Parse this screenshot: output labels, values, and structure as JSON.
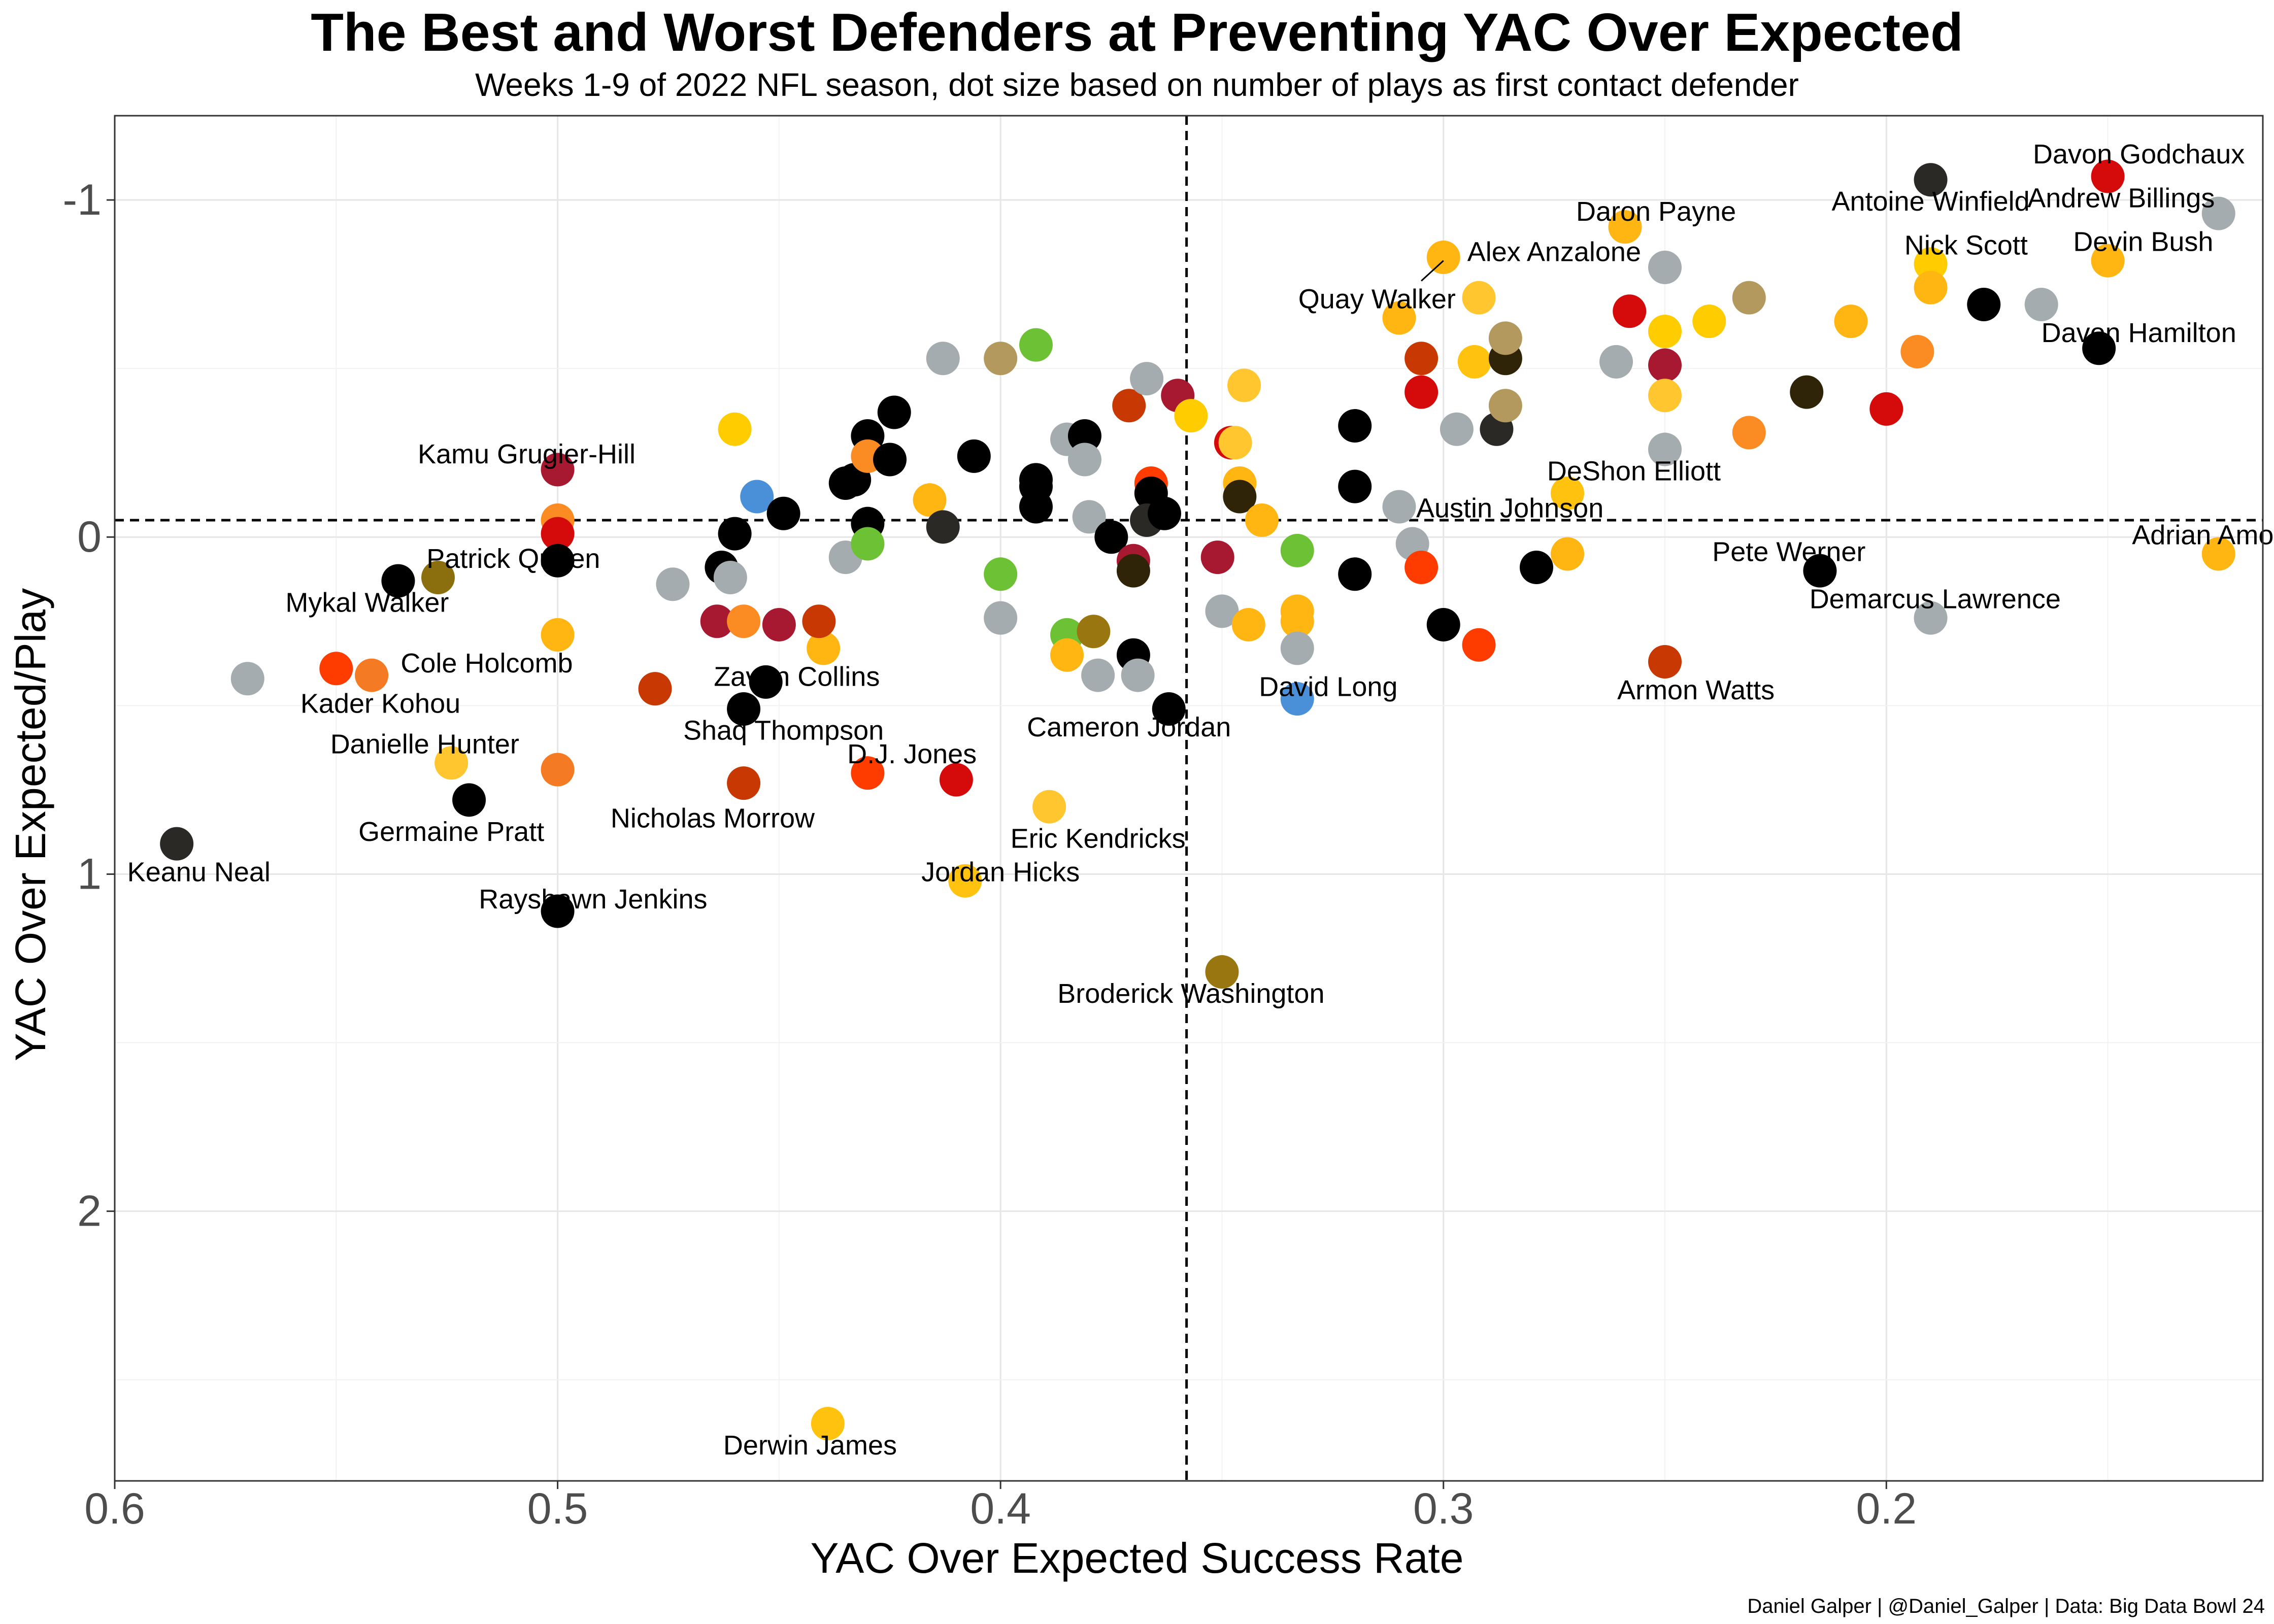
{
  "title": "The Best and Worst Defenders at Preventing YAC Over Expected",
  "subtitle": "Weeks 1-9 of 2022 NFL season, dot size based on number of plays as first contact defender",
  "caption": "Daniel Galper | @Daniel_Galper | Data: Big Data Bowl 24",
  "chart_data": {
    "type": "scatter",
    "xlabel": "YAC Over Expected Success Rate",
    "ylabel": "YAC Over Expected/Play",
    "x_reversed": true,
    "y_reversed": true,
    "xlim": [
      0.6,
      0.115
    ],
    "ylim": [
      -1.25,
      2.8
    ],
    "x_ticks": [
      0.6,
      0.5,
      0.4,
      0.3,
      0.2
    ],
    "x_tick_labels": [
      "0.6",
      "0.5",
      "0.4",
      "0.3",
      "0.2"
    ],
    "y_ticks": [
      -1,
      0,
      1,
      2
    ],
    "y_tick_labels": [
      "-1",
      "0",
      "1",
      "2"
    ],
    "reference_lines": {
      "x": 0.358,
      "y": -0.05
    },
    "grid": true,
    "points": [
      {
        "x": 0.586,
        "y": 0.91,
        "color": "#2b2925"
      },
      {
        "x": 0.57,
        "y": 0.42,
        "color": "#a5acaf"
      },
      {
        "x": 0.55,
        "y": 0.39,
        "color": "#ff3c00"
      },
      {
        "x": 0.542,
        "y": 0.41,
        "color": "#f47a24"
      },
      {
        "x": 0.536,
        "y": 0.13,
        "color": "#000000"
      },
      {
        "x": 0.527,
        "y": 0.12,
        "color": "#8b6f0e"
      },
      {
        "x": 0.524,
        "y": 0.67,
        "color": "#ffc62f"
      },
      {
        "x": 0.52,
        "y": 0.78,
        "color": "#000000"
      },
      {
        "x": 0.5,
        "y": 1.11,
        "color": "#000000"
      },
      {
        "x": 0.5,
        "y": -0.2,
        "color": "#a71930"
      },
      {
        "x": 0.5,
        "y": -0.05,
        "color": "#fb8c24"
      },
      {
        "x": 0.5,
        "y": -0.01,
        "color": "#d50a0a"
      },
      {
        "x": 0.5,
        "y": 0.07,
        "color": "#000000"
      },
      {
        "x": 0.5,
        "y": 0.29,
        "color": "#ffb612"
      },
      {
        "x": 0.5,
        "y": 0.69,
        "color": "#f47a24"
      },
      {
        "x": 0.478,
        "y": 0.45,
        "color": "#c83803"
      },
      {
        "x": 0.474,
        "y": 0.14,
        "color": "#a5acaf"
      },
      {
        "x": 0.463,
        "y": 0.09,
        "color": "#000000"
      },
      {
        "x": 0.464,
        "y": 0.25,
        "color": "#a71930"
      },
      {
        "x": 0.461,
        "y": 0.12,
        "color": "#a5acaf"
      },
      {
        "x": 0.46,
        "y": -0.32,
        "color": "#ffcc00"
      },
      {
        "x": 0.46,
        "y": -0.01,
        "color": "#000000"
      },
      {
        "x": 0.458,
        "y": 0.25,
        "color": "#fb8c24"
      },
      {
        "x": 0.458,
        "y": 0.51,
        "color": "#000000"
      },
      {
        "x": 0.458,
        "y": 0.73,
        "color": "#c83803"
      },
      {
        "x": 0.453,
        "y": 0.43,
        "color": "#000000"
      },
      {
        "x": 0.455,
        "y": -0.12,
        "color": "#4a90d9"
      },
      {
        "x": 0.449,
        "y": -0.07,
        "color": "#000000"
      },
      {
        "x": 0.45,
        "y": 0.26,
        "color": "#a71930"
      },
      {
        "x": 0.44,
        "y": 0.33,
        "color": "#ffb612"
      },
      {
        "x": 0.441,
        "y": 0.25,
        "color": "#c83803"
      },
      {
        "x": 0.439,
        "y": 2.63,
        "color": "#ffc20e"
      },
      {
        "x": 0.435,
        "y": 0.06,
        "color": "#a5acaf"
      },
      {
        "x": 0.435,
        "y": -0.16,
        "color": "#000000"
      },
      {
        "x": 0.433,
        "y": -0.17,
        "color": "#000000"
      },
      {
        "x": 0.43,
        "y": -0.3,
        "color": "#000000"
      },
      {
        "x": 0.43,
        "y": -0.24,
        "color": "#fb8c24"
      },
      {
        "x": 0.43,
        "y": -0.04,
        "color": "#000000"
      },
      {
        "x": 0.43,
        "y": 0.02,
        "color": "#6cc234"
      },
      {
        "x": 0.43,
        "y": 0.7,
        "color": "#ff3c00"
      },
      {
        "x": 0.425,
        "y": -0.23,
        "color": "#000000"
      },
      {
        "x": 0.424,
        "y": -0.37,
        "color": "#000000"
      },
      {
        "x": 0.416,
        "y": -0.11,
        "color": "#ffb612"
      },
      {
        "x": 0.413,
        "y": -0.53,
        "color": "#a5acaf"
      },
      {
        "x": 0.413,
        "y": -0.03,
        "color": "#2b2925"
      },
      {
        "x": 0.41,
        "y": 0.72,
        "color": "#d50a0a"
      },
      {
        "x": 0.408,
        "y": 1.02,
        "color": "#ffc20e"
      },
      {
        "x": 0.4,
        "y": -0.53,
        "color": "#b3995d"
      },
      {
        "x": 0.4,
        "y": 0.11,
        "color": "#6cc234"
      },
      {
        "x": 0.4,
        "y": 0.24,
        "color": "#a5acaf"
      },
      {
        "x": 0.406,
        "y": -0.24,
        "color": "#000000"
      },
      {
        "x": 0.392,
        "y": -0.57,
        "color": "#6cc234"
      },
      {
        "x": 0.392,
        "y": -0.17,
        "color": "#000000"
      },
      {
        "x": 0.392,
        "y": -0.15,
        "color": "#000000"
      },
      {
        "x": 0.392,
        "y": -0.09,
        "color": "#000000"
      },
      {
        "x": 0.389,
        "y": 0.8,
        "color": "#ffc62f"
      },
      {
        "x": 0.385,
        "y": -0.29,
        "color": "#a5acaf"
      },
      {
        "x": 0.385,
        "y": 0.29,
        "color": "#6cc234"
      },
      {
        "x": 0.385,
        "y": 0.35,
        "color": "#ffb612"
      },
      {
        "x": 0.381,
        "y": -0.3,
        "color": "#000000"
      },
      {
        "x": 0.381,
        "y": -0.23,
        "color": "#a5acaf"
      },
      {
        "x": 0.38,
        "y": -0.06,
        "color": "#a5acaf"
      },
      {
        "x": 0.379,
        "y": 0.28,
        "color": "#9a7611"
      },
      {
        "x": 0.378,
        "y": 0.41,
        "color": "#a5acaf"
      },
      {
        "x": 0.375,
        "y": 0.0,
        "color": "#000000"
      },
      {
        "x": 0.371,
        "y": -0.39,
        "color": "#c83803"
      },
      {
        "x": 0.37,
        "y": 0.07,
        "color": "#a71930"
      },
      {
        "x": 0.37,
        "y": 0.1,
        "color": "#2f2308"
      },
      {
        "x": 0.37,
        "y": 0.35,
        "color": "#000000"
      },
      {
        "x": 0.369,
        "y": 0.41,
        "color": "#a5acaf"
      },
      {
        "x": 0.367,
        "y": -0.47,
        "color": "#a5acaf"
      },
      {
        "x": 0.366,
        "y": -0.16,
        "color": "#ff3c00"
      },
      {
        "x": 0.366,
        "y": -0.13,
        "color": "#000000"
      },
      {
        "x": 0.367,
        "y": -0.05,
        "color": "#2b2925"
      },
      {
        "x": 0.363,
        "y": -0.07,
        "color": "#000000"
      },
      {
        "x": 0.362,
        "y": 0.51,
        "color": "#000000"
      },
      {
        "x": 0.36,
        "y": -0.42,
        "color": "#a71930"
      },
      {
        "x": 0.357,
        "y": -0.36,
        "color": "#ffcc00"
      },
      {
        "x": 0.351,
        "y": 0.06,
        "color": "#a71930"
      },
      {
        "x": 0.35,
        "y": 0.22,
        "color": "#a5acaf"
      },
      {
        "x": 0.35,
        "y": 1.29,
        "color": "#9a7611"
      },
      {
        "x": 0.348,
        "y": -0.28,
        "color": "#d50a0a"
      },
      {
        "x": 0.347,
        "y": -0.28,
        "color": "#ffc62f"
      },
      {
        "x": 0.346,
        "y": -0.16,
        "color": "#ffb612"
      },
      {
        "x": 0.346,
        "y": -0.12,
        "color": "#2f2308"
      },
      {
        "x": 0.345,
        "y": -0.45,
        "color": "#ffc62f"
      },
      {
        "x": 0.344,
        "y": 0.26,
        "color": "#ffb612"
      },
      {
        "x": 0.341,
        "y": -0.05,
        "color": "#ffb612"
      },
      {
        "x": 0.333,
        "y": 0.04,
        "color": "#6cc234"
      },
      {
        "x": 0.333,
        "y": 0.22,
        "color": "#ffb612"
      },
      {
        "x": 0.333,
        "y": 0.25,
        "color": "#ffb612"
      },
      {
        "x": 0.333,
        "y": 0.33,
        "color": "#a5acaf"
      },
      {
        "x": 0.333,
        "y": 0.48,
        "color": "#4a90d9"
      },
      {
        "x": 0.32,
        "y": -0.33,
        "color": "#000000"
      },
      {
        "x": 0.32,
        "y": -0.15,
        "color": "#000000"
      },
      {
        "x": 0.32,
        "y": 0.11,
        "color": "#000000"
      },
      {
        "x": 0.31,
        "y": -0.65,
        "color": "#ffb612"
      },
      {
        "x": 0.31,
        "y": -0.09,
        "color": "#a5acaf"
      },
      {
        "x": 0.307,
        "y": 0.02,
        "color": "#a5acaf"
      },
      {
        "x": 0.305,
        "y": -0.53,
        "color": "#c83803"
      },
      {
        "x": 0.305,
        "y": -0.43,
        "color": "#d50a0a"
      },
      {
        "x": 0.305,
        "y": 0.09,
        "color": "#ff3c00"
      },
      {
        "x": 0.3,
        "y": -0.83,
        "color": "#ffb612"
      },
      {
        "x": 0.3,
        "y": 0.26,
        "color": "#000000"
      },
      {
        "x": 0.297,
        "y": -0.32,
        "color": "#a5acaf"
      },
      {
        "x": 0.293,
        "y": -0.52,
        "color": "#ffc20e"
      },
      {
        "x": 0.292,
        "y": -0.71,
        "color": "#ffc62f"
      },
      {
        "x": 0.292,
        "y": 0.32,
        "color": "#ff3c00"
      },
      {
        "x": 0.288,
        "y": -0.32,
        "color": "#2b2925"
      },
      {
        "x": 0.286,
        "y": -0.53,
        "color": "#2f2308"
      },
      {
        "x": 0.286,
        "y": -0.59,
        "color": "#b3995d"
      },
      {
        "x": 0.286,
        "y": -0.39,
        "color": "#b3995d"
      },
      {
        "x": 0.279,
        "y": 0.09,
        "color": "#000000"
      },
      {
        "x": 0.272,
        "y": -0.13,
        "color": "#ffc20e"
      },
      {
        "x": 0.272,
        "y": 0.05,
        "color": "#ffb612"
      },
      {
        "x": 0.261,
        "y": -0.52,
        "color": "#a5acaf"
      },
      {
        "x": 0.259,
        "y": -0.92,
        "color": "#ffb612"
      },
      {
        "x": 0.258,
        "y": -0.67,
        "color": "#d50a0a"
      },
      {
        "x": 0.25,
        "y": -0.8,
        "color": "#a5acaf"
      },
      {
        "x": 0.25,
        "y": -0.61,
        "color": "#ffcc00"
      },
      {
        "x": 0.25,
        "y": -0.51,
        "color": "#a71930"
      },
      {
        "x": 0.25,
        "y": -0.42,
        "color": "#ffc62f"
      },
      {
        "x": 0.25,
        "y": -0.26,
        "color": "#a5acaf"
      },
      {
        "x": 0.25,
        "y": 0.37,
        "color": "#c83803"
      },
      {
        "x": 0.24,
        "y": -0.64,
        "color": "#ffcc00"
      },
      {
        "x": 0.231,
        "y": -0.71,
        "color": "#b3995d"
      },
      {
        "x": 0.231,
        "y": -0.31,
        "color": "#fb8c24"
      },
      {
        "x": 0.218,
        "y": -0.43,
        "color": "#2f2308"
      },
      {
        "x": 0.215,
        "y": 0.1,
        "color": "#000000"
      },
      {
        "x": 0.208,
        "y": -0.64,
        "color": "#ffb612"
      },
      {
        "x": 0.2,
        "y": -0.38,
        "color": "#d50a0a"
      },
      {
        "x": 0.193,
        "y": -0.55,
        "color": "#fb8c24"
      },
      {
        "x": 0.19,
        "y": -1.06,
        "color": "#2b2925"
      },
      {
        "x": 0.19,
        "y": -0.81,
        "color": "#ffcc00"
      },
      {
        "x": 0.19,
        "y": -0.74,
        "color": "#ffb612"
      },
      {
        "x": 0.19,
        "y": 0.24,
        "color": "#a5acaf"
      },
      {
        "x": 0.178,
        "y": -0.69,
        "color": "#000000"
      },
      {
        "x": 0.165,
        "y": -0.69,
        "color": "#a5acaf"
      },
      {
        "x": 0.15,
        "y": -1.07,
        "color": "#d50a0a"
      },
      {
        "x": 0.15,
        "y": -0.82,
        "color": "#ffb612"
      },
      {
        "x": 0.152,
        "y": -0.56,
        "color": "#000000"
      },
      {
        "x": 0.125,
        "y": -0.96,
        "color": "#a5acaf"
      },
      {
        "x": 0.125,
        "y": 0.05,
        "color": "#ffb612"
      }
    ],
    "annotations": [
      {
        "text": "Davon Godchaux",
        "x": 0.143,
        "y": -1.13
      },
      {
        "text": "Antoine Winfield",
        "x": 0.19,
        "y": -0.99
      },
      {
        "text": "Andrew Billings",
        "x": 0.147,
        "y": -1.0
      },
      {
        "text": "Daron Payne",
        "x": 0.252,
        "y": -0.96
      },
      {
        "text": "Devin Bush",
        "x": 0.142,
        "y": -0.87
      },
      {
        "text": "Nick Scott",
        "x": 0.182,
        "y": -0.86
      },
      {
        "text": "Alex Anzalone",
        "x": 0.275,
        "y": -0.84
      },
      {
        "text": "Quay Walker",
        "x": 0.315,
        "y": -0.7
      },
      {
        "text": "Davon Hamilton",
        "x": 0.143,
        "y": -0.6
      },
      {
        "text": "Kamu Grugier-Hill",
        "x": 0.507,
        "y": -0.24
      },
      {
        "text": "DeShon Elliott",
        "x": 0.257,
        "y": -0.19
      },
      {
        "text": "Austin Johnson",
        "x": 0.285,
        "y": -0.08
      },
      {
        "text": "Adrian Amos",
        "x": 0.127,
        "y": 0.0
      },
      {
        "text": "Patrick Queen",
        "x": 0.51,
        "y": 0.07
      },
      {
        "text": "Pete Werner",
        "x": 0.222,
        "y": 0.05
      },
      {
        "text": "Mykal Walker",
        "x": 0.543,
        "y": 0.2
      },
      {
        "text": "Demarcus Lawrence",
        "x": 0.189,
        "y": 0.19
      },
      {
        "text": "Cole Holcomb",
        "x": 0.516,
        "y": 0.38
      },
      {
        "text": "Zaven Collins",
        "x": 0.446,
        "y": 0.42
      },
      {
        "text": "David Long",
        "x": 0.326,
        "y": 0.45
      },
      {
        "text": "Armon Watts",
        "x": 0.243,
        "y": 0.46
      },
      {
        "text": "Kader Kohou",
        "x": 0.54,
        "y": 0.5
      },
      {
        "text": "Shaq Thompson",
        "x": 0.449,
        "y": 0.58
      },
      {
        "text": "Cameron Jordan",
        "x": 0.371,
        "y": 0.57
      },
      {
        "text": "Danielle Hunter",
        "x": 0.53,
        "y": 0.62
      },
      {
        "text": "D.J. Jones",
        "x": 0.42,
        "y": 0.65
      },
      {
        "text": "Nicholas Morrow",
        "x": 0.465,
        "y": 0.84
      },
      {
        "text": "Germaine Pratt",
        "x": 0.524,
        "y": 0.88
      },
      {
        "text": "Eric Kendricks",
        "x": 0.378,
        "y": 0.9
      },
      {
        "text": "Keanu Neal",
        "x": 0.581,
        "y": 1.0
      },
      {
        "text": "Jordan Hicks",
        "x": 0.4,
        "y": 1.0
      },
      {
        "text": "Rayshawn Jenkins",
        "x": 0.492,
        "y": 1.08
      },
      {
        "text": "Broderick Washington",
        "x": 0.357,
        "y": 1.36
      },
      {
        "text": "Derwin James",
        "x": 0.443,
        "y": 2.7
      }
    ]
  }
}
